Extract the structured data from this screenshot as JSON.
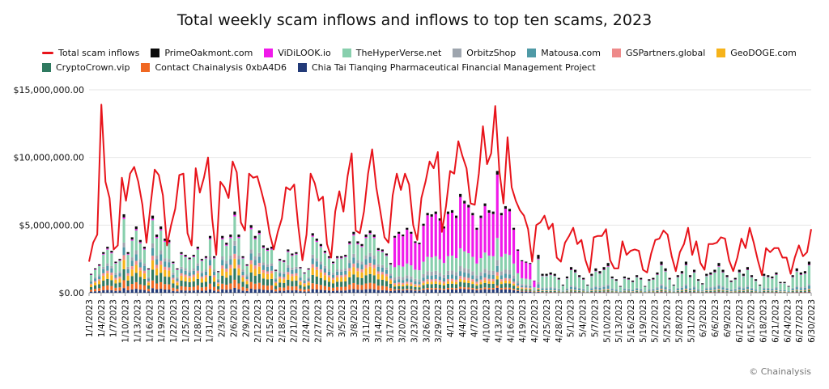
{
  "chart_data": {
    "type": "bar",
    "title": "Total weekly scam inflows and inflows to top ten scams, 2023",
    "xlabel": "",
    "ylabel": "",
    "ylim": [
      0,
      15000000
    ],
    "yticks": [
      "$0.00",
      "$5,000,000.00",
      "$10,000,000.00",
      "$15,000,000.00"
    ],
    "ytick_values": [
      0,
      5000000,
      10000000,
      15000000
    ],
    "grid": true,
    "legend_position": "top",
    "x_tick_labels": [
      "1/1/2023",
      "1/4/2023",
      "1/7/2023",
      "1/10/2023",
      "1/13/2023",
      "1/16/2023",
      "1/19/2023",
      "1/22/2023",
      "1/25/2023",
      "1/28/2023",
      "1/31/2023",
      "2/3/2023",
      "2/6/2023",
      "2/9/2023",
      "2/12/2023",
      "2/15/2023",
      "2/18/2023",
      "2/21/2023",
      "2/24/2023",
      "2/27/2023",
      "3/2/2023",
      "3/5/2023",
      "3/8/2023",
      "3/11/2023",
      "3/14/2023",
      "3/17/2023",
      "3/20/2023",
      "3/23/2023",
      "3/26/2023",
      "3/29/2023",
      "4/1/2023",
      "4/4/2023",
      "4/7/2023",
      "4/10/2023",
      "4/13/2023",
      "4/16/2023",
      "4/19/2023",
      "4/22/2023",
      "4/25/2023",
      "4/28/2023",
      "5/1/2023",
      "5/4/2023",
      "5/7/2023",
      "5/10/2023",
      "5/13/2023",
      "5/16/2023",
      "5/19/2023",
      "5/22/2023",
      "5/25/2023",
      "5/28/2023",
      "5/31/2023",
      "6/3/2023",
      "6/6/2023",
      "6/9/2023",
      "6/12/2023",
      "6/15/2023",
      "6/18/2023",
      "6/21/2023",
      "6/24/2023",
      "6/27/2023",
      "6/30/2023"
    ],
    "line_series": {
      "name": "Total scam inflows",
      "color": "#e8141b",
      "values": [
        2300000,
        3700000,
        4300000,
        13900000,
        8200000,
        7000000,
        3200000,
        3500000,
        8500000,
        6800000,
        8800000,
        9300000,
        8200000,
        6500000,
        3700000,
        6500000,
        9100000,
        8700000,
        7200000,
        3500000,
        5000000,
        6200000,
        8700000,
        8800000,
        4400000,
        3500000,
        9200000,
        7400000,
        8500000,
        10000000,
        5500000,
        2800000,
        8200000,
        7800000,
        7000000,
        9700000,
        8900000,
        5200000,
        4600000,
        8800000,
        8500000,
        8600000,
        7500000,
        6300000,
        4400000,
        3200000,
        4500000,
        5500000,
        7800000,
        7600000,
        8000000,
        4900000,
        2400000,
        4300000,
        8800000,
        8100000,
        6800000,
        7100000,
        3600000,
        2600000,
        6000000,
        7500000,
        6000000,
        8600000,
        10300000,
        4600000,
        4400000,
        6000000,
        8800000,
        10600000,
        7800000,
        6000000,
        4100000,
        3700000,
        7200000,
        8800000,
        7600000,
        8800000,
        8000000,
        5000000,
        3900000,
        7000000,
        8200000,
        9700000,
        9200000,
        10400000,
        4500000,
        6400000,
        9000000,
        8800000,
        11200000,
        10100000,
        9200000,
        6600000,
        6500000,
        8800000,
        12300000,
        9500000,
        10300000,
        13800000,
        9000000,
        6600000,
        11500000,
        7800000,
        6800000,
        6100000,
        5700000,
        4700000,
        2300000,
        5000000,
        5200000,
        5700000,
        4700000,
        5100000,
        2600000,
        2300000,
        3700000,
        4200000,
        4800000,
        3600000,
        3900000,
        2400000,
        1500000,
        4100000,
        4200000,
        4200000,
        4700000,
        2400000,
        1800000,
        1800000,
        3800000,
        2800000,
        3100000,
        3200000,
        3100000,
        1700000,
        1500000,
        2900000,
        3900000,
        4000000,
        4600000,
        4300000,
        2700000,
        1600000,
        3000000,
        3600000,
        4800000,
        2800000,
        3800000,
        2200000,
        1700000,
        3600000,
        3600000,
        3700000,
        4100000,
        4000000,
        2400000,
        1600000,
        2600000,
        4000000,
        3300000,
        4800000,
        3700000,
        2400000,
        1300000,
        3300000,
        3000000,
        3300000,
        3300000,
        2600000,
        2600000,
        1400000,
        2600000,
        3500000,
        2700000,
        3000000,
        4700000
      ]
    },
    "series": [
      {
        "name": "PrimeOakmont.com",
        "color": "#0a0a0a"
      },
      {
        "name": "ViDiLOOK.io",
        "color": "#f019ea"
      },
      {
        "name": "TheHyperVerse.net",
        "color": "#88cfad"
      },
      {
        "name": "OrbitzShop",
        "color": "#9ea5ae"
      },
      {
        "name": "Matousa.com",
        "color": "#4f9aa6"
      },
      {
        "name": "GSPartners.global",
        "color": "#ee8a8a"
      },
      {
        "name": "GeoDOGE.com",
        "color": "#f6b31a"
      },
      {
        "name": "CryptoCrown.vip",
        "color": "#2f7a60"
      },
      {
        "name": "Contact Chainalysis 0xbA4D6",
        "color": "#f06822"
      },
      {
        "name": "Chia Tai Tianqing Pharmaceutical Financial Management Project",
        "color": "#223a78"
      }
    ],
    "stacked_bar_totals": [
      1400000,
      1800000,
      2100000,
      3000000,
      3400000,
      3100000,
      2300000,
      2500000,
      5800000,
      3000000,
      4100000,
      4900000,
      3900000,
      3400000,
      1800000,
      5700000,
      4300000,
      4900000,
      4000000,
      3900000,
      2300000,
      1800000,
      3000000,
      2800000,
      2600000,
      2800000,
      3400000,
      2500000,
      2700000,
      4200000,
      2700000,
      1600000,
      4200000,
      3700000,
      4300000,
      6000000,
      4300000,
      2700000,
      2100000,
      5000000,
      4200000,
      4600000,
      3500000,
      3300000,
      3400000,
      1700000,
      2500000,
      2400000,
      3200000,
      2900000,
      3000000,
      1900000,
      1500000,
      1800000,
      4400000,
      4000000,
      3600000,
      3100000,
      2700000,
      2300000,
      2700000,
      2700000,
      2800000,
      3800000,
      4500000,
      3800000,
      3600000,
      4300000,
      4600000,
      4300000,
      3300000,
      3200000,
      2900000,
      2200000,
      4200000,
      4500000,
      4300000,
      4800000,
      4500000,
      3800000,
      3700000,
      5100000,
      5900000,
      5800000,
      6000000,
      5500000,
      4900000,
      6000000,
      6100000,
      5700000,
      7300000,
      6800000,
      6500000,
      5900000,
      4800000,
      5700000,
      6600000,
      6100000,
      6000000,
      9000000,
      5900000,
      6400000,
      6200000,
      4800000,
      3200000,
      2400000,
      2300000,
      2200000,
      900000,
      2800000,
      1400000,
      1400000,
      1500000,
      1400000,
      1100000,
      600000,
      1200000,
      1900000,
      1700000,
      1300000,
      1100000,
      600000,
      1400000,
      1800000,
      1600000,
      1900000,
      2200000,
      1200000,
      1000000,
      500000,
      1200000,
      1100000,
      900000,
      1300000,
      1100000,
      500000,
      1000000,
      1100000,
      1500000,
      2300000,
      1800000,
      1100000,
      600000,
      1300000,
      1600000,
      2300000,
      1300000,
      1700000,
      1000000,
      700000,
      1400000,
      1500000,
      1700000,
      2200000,
      1700000,
      1300000,
      900000,
      1100000,
      1700000,
      1400000,
      1900000,
      1300000,
      1000000,
      600000,
      1400000,
      1300000,
      1200000,
      1500000,
      800000,
      800000,
      500000,
      1300000,
      1800000,
      1500000,
      1600000,
      2300000
    ],
    "stack_colors_order": [
      "#0a0a0a",
      "#f019ea",
      "#88cfad",
      "#9ea5ae",
      "#4f9aa6",
      "#ee8a8a",
      "#f6b31a",
      "#2f7a60",
      "#f06822",
      "#223a78"
    ]
  },
  "credit": "© Chainalysis"
}
